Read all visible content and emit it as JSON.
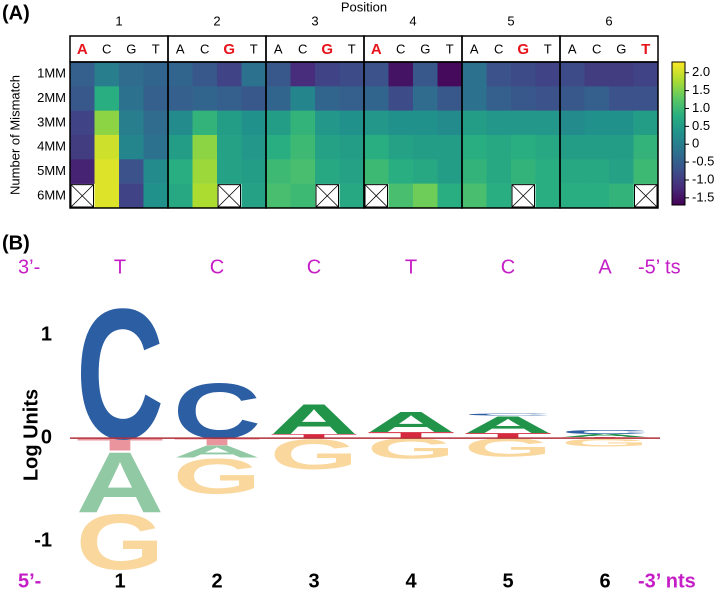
{
  "chart_data": [
    {
      "type": "heatmap",
      "panel_label": "(A)",
      "x_label": "Position",
      "y_label": "Number of Mismatch",
      "colormap": "viridis",
      "highlight_color": "#e8141c",
      "positions": [
        {
          "label": "1",
          "bases": [
            "A",
            "C",
            "G",
            "T"
          ],
          "highlight": "A"
        },
        {
          "label": "2",
          "bases": [
            "A",
            "C",
            "G",
            "T"
          ],
          "highlight": "G"
        },
        {
          "label": "3",
          "bases": [
            "A",
            "C",
            "G",
            "T"
          ],
          "highlight": "G"
        },
        {
          "label": "4",
          "bases": [
            "A",
            "C",
            "G",
            "T"
          ],
          "highlight": "A"
        },
        {
          "label": "5",
          "bases": [
            "A",
            "C",
            "G",
            "T"
          ],
          "highlight": "G"
        },
        {
          "label": "6",
          "bases": [
            "A",
            "C",
            "G",
            "T"
          ],
          "highlight": "T"
        }
      ],
      "rows": [
        "1MM",
        "2MM",
        "3MM",
        "4MM",
        "5MM",
        "6MM"
      ],
      "values": [
        [
          -0.5,
          0,
          -0.3,
          -0.4,
          -0.4,
          -0.6,
          -0.9,
          -0.2,
          -0.6,
          -1.2,
          -0.9,
          -0.8,
          -0.7,
          -1.5,
          -0.6,
          -1.6,
          -0.2,
          -0.7,
          -0.8,
          -0.9,
          -0.8,
          -1.0,
          -1.0,
          -0.9
        ],
        [
          -0.6,
          0.8,
          -0.2,
          -0.5,
          -0.5,
          -0.4,
          -0.5,
          -0.6,
          -0.4,
          0.1,
          -0.4,
          -0.5,
          -0.4,
          -0.8,
          -0.3,
          -0.6,
          -0.2,
          -0.5,
          -0.6,
          -0.7,
          -0.6,
          -0.5,
          -0.7,
          -0.7
        ],
        [
          -0.9,
          1.6,
          0.0,
          -0.3,
          0.2,
          0.9,
          0.5,
          0.3,
          0.5,
          0.9,
          0.4,
          0.3,
          0.4,
          0.3,
          0.3,
          0.2,
          0.5,
          0.4,
          0.4,
          0.4,
          0.2,
          0.3,
          0.3,
          0.5
        ],
        [
          -1.0,
          2.0,
          0.1,
          -0.2,
          0.5,
          1.6,
          0.6,
          0.4,
          0.8,
          1.0,
          0.6,
          0.5,
          0.8,
          0.6,
          0.5,
          0.5,
          0.8,
          0.7,
          0.8,
          0.7,
          0.5,
          0.5,
          0.5,
          0.9
        ],
        [
          -1.3,
          2.1,
          -0.7,
          0.2,
          0.8,
          1.7,
          0.6,
          0.5,
          1.0,
          1.1,
          0.7,
          0.6,
          1.0,
          0.8,
          0.7,
          0.5,
          0.9,
          0.7,
          0.9,
          0.8,
          0.7,
          0.7,
          0.6,
          1.0
        ],
        [
          null,
          2.1,
          -0.9,
          0.3,
          0.7,
          1.8,
          null,
          0.6,
          1.1,
          1.0,
          null,
          0.7,
          null,
          1.1,
          1.4,
          0.8,
          1.1,
          0.8,
          null,
          0.8,
          0.8,
          0.8,
          0.9,
          null
        ]
      ],
      "clim": [
        -1.7,
        2.3
      ],
      "cticks": [
        {
          "value": 2,
          "label": "2.0"
        },
        1.5,
        {
          "value": 1,
          "label": "1.0"
        },
        0.5,
        0,
        -0.5,
        {
          "value": -1,
          "label": "-1.0"
        },
        -1.5
      ]
    },
    {
      "type": "logo",
      "panel_label": "(B)",
      "y_label": "Log Units",
      "top_left": "3’-",
      "top_sequence": [
        "T",
        "C",
        "C",
        "T",
        "C",
        "A"
      ],
      "top_right": "-5’ ts",
      "bottom_left": "5’-",
      "categories": [
        "1",
        "2",
        "3",
        "4",
        "5",
        "6"
      ],
      "bottom_right": "-3’ nts",
      "label_color": "#c61ec6",
      "negative_opacity": 0.5,
      "ylim": [
        -1.3,
        1.35
      ],
      "yticks": [
        -1,
        0,
        1
      ],
      "series": [
        {
          "name": "T",
          "color": "#d6293e",
          "values": [
            -0.12,
            -0.07,
            0.04,
            0.06,
            0.05,
            0.01
          ]
        },
        {
          "name": "A",
          "color": "#21944a",
          "values": [
            -0.6,
            -0.12,
            0.3,
            0.2,
            0.17,
            0.03
          ]
        },
        {
          "name": "C",
          "color": "#2c5ea3",
          "values": [
            1.3,
            0.55,
            0,
            0,
            0.02,
            0.04
          ]
        },
        {
          "name": "G",
          "color": "#f5b03a",
          "values": [
            -0.55,
            -0.35,
            -0.3,
            -0.2,
            -0.18,
            -0.08
          ]
        }
      ]
    }
  ]
}
